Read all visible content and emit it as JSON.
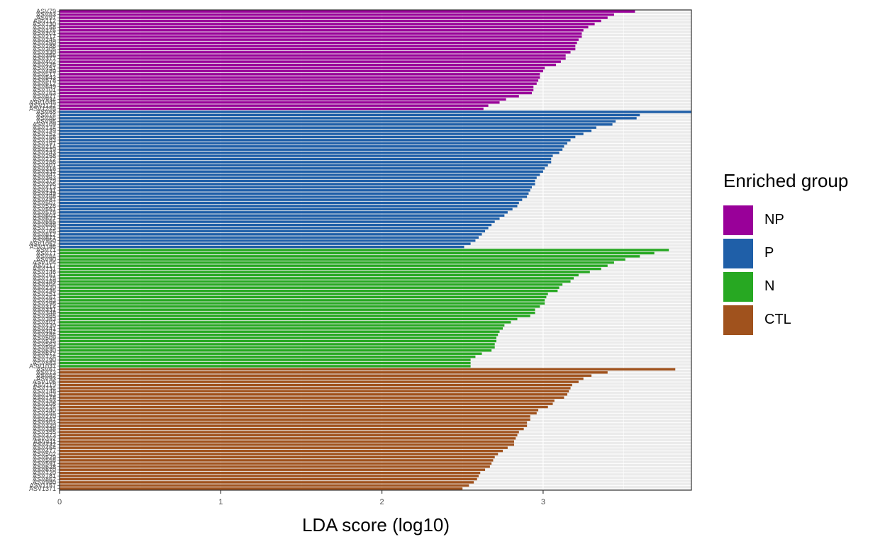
{
  "chart_data": {
    "type": "bar",
    "orientation": "horizontal",
    "xlabel": "LDA score (log10)",
    "ylabel": "",
    "xlim": [
      0,
      3.92
    ],
    "x_ticks": [
      "0",
      "1",
      "2",
      "3"
    ],
    "grid": true,
    "legend_title": "Enriched group",
    "legend_position": "right",
    "series": [
      {
        "name": "NP",
        "color": "#990099",
        "categories": [
          "ASV79",
          "ASV83",
          "ASV97",
          "ASV112",
          "ASV130",
          "ASV158",
          "ASV176",
          "ASV201",
          "ASV217",
          "ASV245",
          "ASV260",
          "ASV288",
          "ASV305",
          "ASV330",
          "ASV356",
          "ASV377",
          "ASV402",
          "ASV426",
          "ASV451",
          "ASV489",
          "ASV517",
          "ASV543",
          "ASV578",
          "ASV612",
          "ASV649",
          "ASV701",
          "ASV763",
          "ASV827",
          "ASV934",
          "ASV1045",
          "ASV1132",
          "ASV1255"
        ],
        "values": [
          3.57,
          3.44,
          3.4,
          3.36,
          3.32,
          3.28,
          3.25,
          3.24,
          3.24,
          3.22,
          3.21,
          3.2,
          3.2,
          3.17,
          3.14,
          3.14,
          3.11,
          3.08,
          3.01,
          3.0,
          2.98,
          2.98,
          2.97,
          2.96,
          2.94,
          2.94,
          2.93,
          2.85,
          2.77,
          2.73,
          2.66,
          2.63
        ]
      },
      {
        "name": "P",
        "color": "#1F5FA8",
        "categories": [
          "ASV68",
          "ASV74",
          "ASV86",
          "ASV95",
          "ASV109",
          "ASV124",
          "ASV139",
          "ASV152",
          "ASV168",
          "ASV183",
          "ASV197",
          "ASV214",
          "ASV229",
          "ASV243",
          "ASV258",
          "ASV272",
          "ASV286",
          "ASV301",
          "ASV316",
          "ASV332",
          "ASV347",
          "ASV363",
          "ASV379",
          "ASV396",
          "ASV413",
          "ASV431",
          "ASV449",
          "ASV468",
          "ASV487",
          "ASV507",
          "ASV528",
          "ASV551",
          "ASV575",
          "ASV601",
          "ASV627",
          "ASV655",
          "ASV688",
          "ASV723",
          "ASV765",
          "ASV812",
          "ASV871",
          "ASV950",
          "ASV1052",
          "ASV1186"
        ],
        "values": [
          3.92,
          3.6,
          3.58,
          3.45,
          3.43,
          3.33,
          3.3,
          3.25,
          3.2,
          3.17,
          3.15,
          3.13,
          3.12,
          3.1,
          3.06,
          3.05,
          3.05,
          3.03,
          3.01,
          3.0,
          2.98,
          2.96,
          2.95,
          2.95,
          2.93,
          2.92,
          2.91,
          2.9,
          2.87,
          2.85,
          2.84,
          2.81,
          2.78,
          2.76,
          2.73,
          2.7,
          2.68,
          2.66,
          2.64,
          2.62,
          2.6,
          2.58,
          2.55,
          2.51
        ]
      },
      {
        "name": "N",
        "color": "#27A822",
        "categories": [
          "ASV71",
          "ASV77",
          "ASV84",
          "ASV90",
          "ASV104",
          "ASV117",
          "ASV131",
          "ASV146",
          "ASV161",
          "ASV175",
          "ASV189",
          "ASV204",
          "ASV220",
          "ASV236",
          "ASV251",
          "ASV267",
          "ASV283",
          "ASV298",
          "ASV314",
          "ASV331",
          "ASV348",
          "ASV365",
          "ASV383",
          "ASV401",
          "ASV420",
          "ASV441",
          "ASV462",
          "ASV484",
          "ASV509",
          "ASV535",
          "ASV563",
          "ASV594",
          "ASV630",
          "ASV672",
          "ASV724",
          "ASV790",
          "ASV883",
          "ASV1037"
        ],
        "values": [
          3.78,
          3.69,
          3.6,
          3.51,
          3.44,
          3.4,
          3.36,
          3.29,
          3.22,
          3.19,
          3.17,
          3.12,
          3.1,
          3.09,
          3.03,
          3.02,
          3.01,
          3.01,
          2.98,
          2.95,
          2.95,
          2.92,
          2.84,
          2.8,
          2.76,
          2.75,
          2.73,
          2.72,
          2.71,
          2.71,
          2.7,
          2.7,
          2.68,
          2.62,
          2.58,
          2.55,
          2.55,
          2.55
        ]
      },
      {
        "name": "CTL",
        "color": "#A0521D",
        "categories": [
          "ASV67",
          "ASV73",
          "ASV82",
          "ASV93",
          "ASV106",
          "ASV119",
          "ASV134",
          "ASV148",
          "ASV163",
          "ASV178",
          "ASV193",
          "ASV208",
          "ASV224",
          "ASV240",
          "ASV255",
          "ASV270",
          "ASV287",
          "ASV303",
          "ASV320",
          "ASV338",
          "ASV355",
          "ASV373",
          "ASV392",
          "ASV411",
          "ASV432",
          "ASV454",
          "ASV477",
          "ASV502",
          "ASV529",
          "ASV558",
          "ASV591",
          "ASV628",
          "ASV670",
          "ASV720",
          "ASV781",
          "ASV862",
          "ASV980",
          "ASV1157",
          "ASV1371"
        ],
        "values": [
          3.82,
          3.4,
          3.3,
          3.25,
          3.22,
          3.18,
          3.17,
          3.16,
          3.15,
          3.13,
          3.07,
          3.06,
          3.03,
          2.97,
          2.96,
          2.92,
          2.92,
          2.9,
          2.9,
          2.88,
          2.85,
          2.84,
          2.83,
          2.82,
          2.82,
          2.78,
          2.75,
          2.72,
          2.7,
          2.69,
          2.68,
          2.67,
          2.64,
          2.61,
          2.6,
          2.59,
          2.57,
          2.54,
          2.5
        ]
      }
    ]
  },
  "colors": {
    "panel_background": "#EBEBEB",
    "grid_line": "#FFFFFF",
    "axis": "#333333"
  }
}
